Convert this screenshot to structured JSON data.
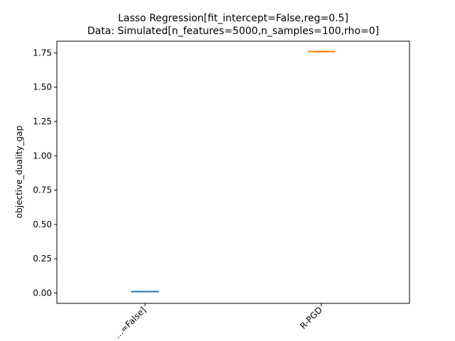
{
  "chart_data": {
    "type": "box",
    "title_line1": "Lasso Regression[fit_intercept=False,reg=0.5]",
    "title_line2": "Data: Simulated[n_features=5000,n_samples=100,rho=0]",
    "xlabel": "",
    "ylabel": "objective_duality_gap",
    "ylim": [
      -0.075,
      1.835
    ],
    "yticks": [
      0.0,
      0.25,
      0.5,
      0.75,
      1.0,
      1.25,
      1.5,
      1.75
    ],
    "ytick_labels": [
      "0.00",
      "0.25",
      "0.50",
      "0.75",
      "1.00",
      "1.25",
      "1.50",
      "1.75"
    ],
    "categories": [
      "...=False]",
      "R-PGD"
    ],
    "series": [
      {
        "category": "...=False]",
        "color": "#1f77b4",
        "median": 0.012,
        "q1": 0.011,
        "q3": 0.013,
        "whisker_low": 0.011,
        "whisker_high": 0.013
      },
      {
        "category": "R-PGD",
        "color": "#ff7f0e",
        "median": 1.76,
        "q1": 1.758,
        "q3": 1.762,
        "whisker_low": 1.757,
        "whisker_high": 1.763
      }
    ],
    "grid": false,
    "legend": "none"
  }
}
